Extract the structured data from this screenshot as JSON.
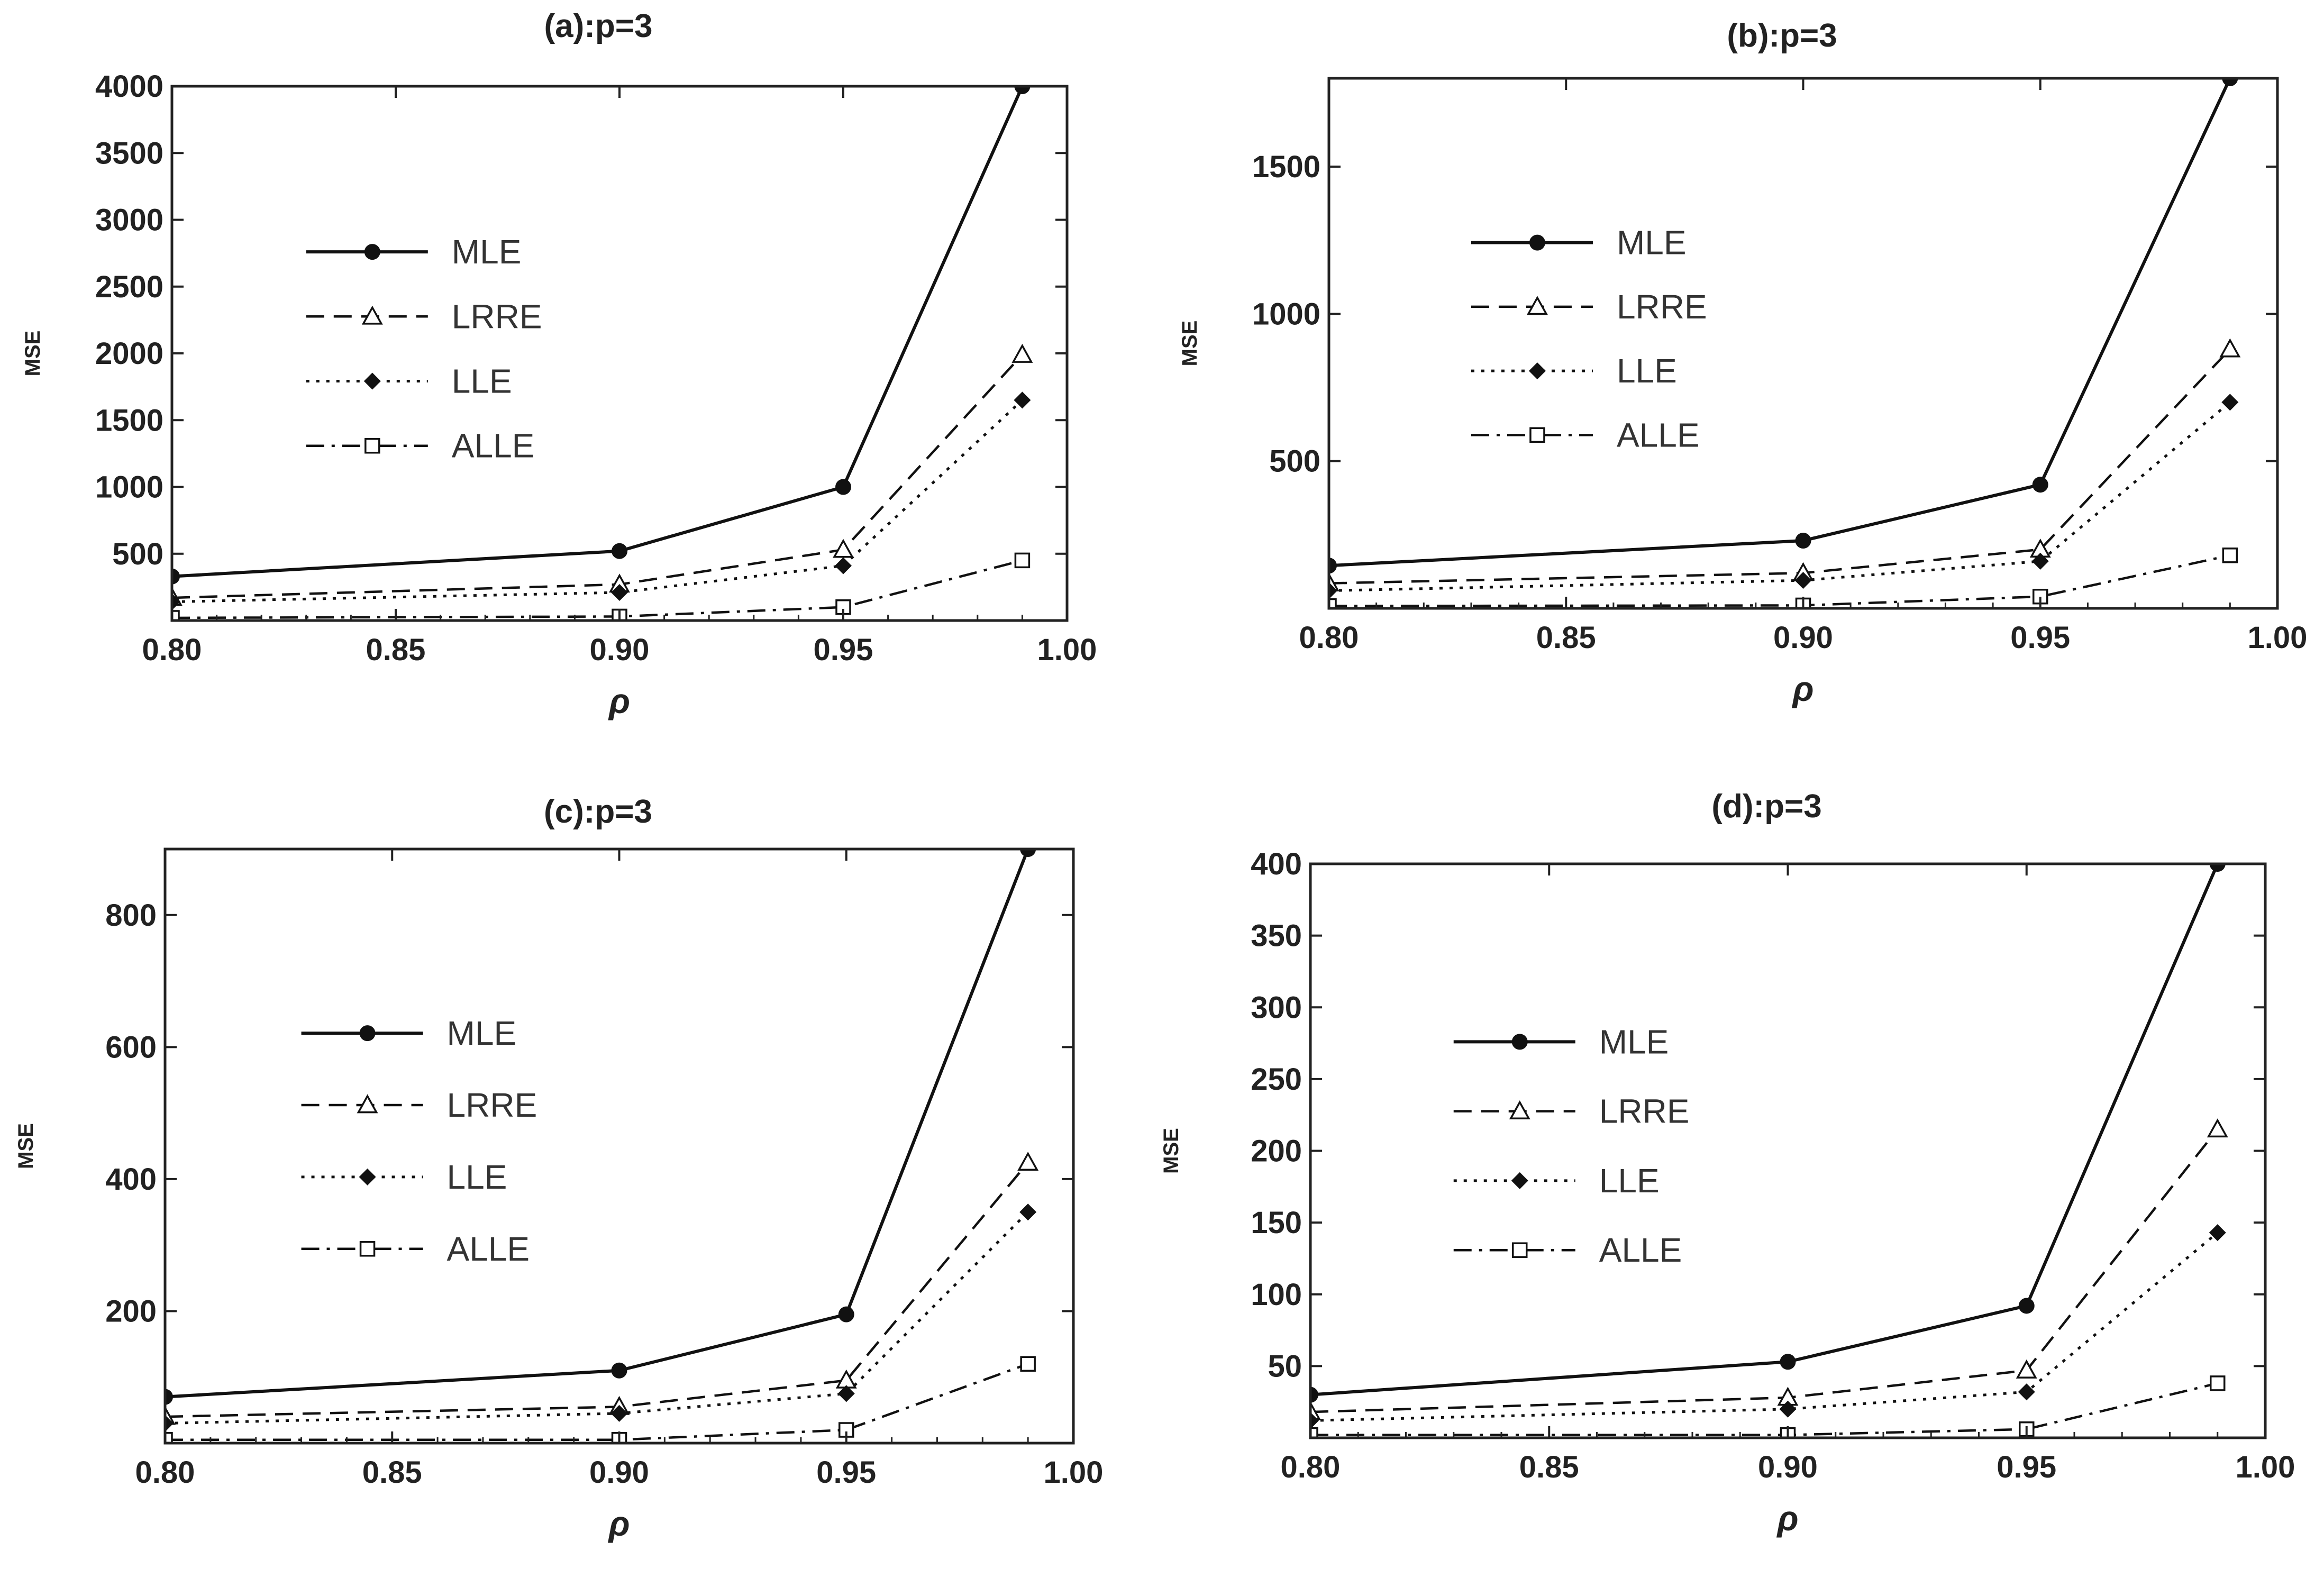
{
  "figure": {
    "panels_title_style": "bold"
  },
  "chart_data": [
    {
      "id": "a",
      "type": "line",
      "title": "(a):p=3",
      "xlabel": "ρ",
      "ylabel": "MSE",
      "x": [
        0.8,
        0.9,
        0.95,
        0.99
      ],
      "xlim": [
        0.8,
        1.0
      ],
      "ylim": [
        0,
        4000
      ],
      "xticks": [
        "0.80",
        "0.85",
        "0.90",
        "0.95",
        "1.00"
      ],
      "xtick_values": [
        0.8,
        0.85,
        0.9,
        0.95,
        1.0
      ],
      "yticks": [
        "500",
        "1000",
        "1500",
        "2000",
        "2500",
        "3000",
        "3500",
        "4000"
      ],
      "ytick_values": [
        500,
        1000,
        1500,
        2000,
        2500,
        3000,
        3500,
        4000
      ],
      "legend_position": "center-left",
      "series": [
        {
          "name": "MLE",
          "values": [
            330,
            520,
            1000,
            4000
          ]
        },
        {
          "name": "LRRE",
          "values": [
            170,
            270,
            530,
            1990
          ]
        },
        {
          "name": "LLE",
          "values": [
            140,
            210,
            410,
            1650
          ]
        },
        {
          "name": "ALLE",
          "values": [
            20,
            30,
            100,
            450
          ]
        }
      ]
    },
    {
      "id": "b",
      "type": "line",
      "title": "(b):p=3",
      "xlabel": "ρ",
      "ylabel": "MSE",
      "x": [
        0.8,
        0.9,
        0.95,
        0.99
      ],
      "xlim": [
        0.8,
        1.0
      ],
      "ylim": [
        0,
        1800
      ],
      "xticks": [
        "0.80",
        "0.85",
        "0.90",
        "0.95",
        "1.00"
      ],
      "xtick_values": [
        0.8,
        0.85,
        0.9,
        0.95,
        1.0
      ],
      "yticks": [
        "500",
        "1000",
        "1500"
      ],
      "ytick_values": [
        500,
        1000,
        1500
      ],
      "legend_position": "center-left",
      "series": [
        {
          "name": "MLE",
          "values": [
            145,
            230,
            420,
            1800
          ]
        },
        {
          "name": "LRRE",
          "values": [
            85,
            120,
            200,
            880
          ]
        },
        {
          "name": "LLE",
          "values": [
            60,
            95,
            160,
            700
          ]
        },
        {
          "name": "ALLE",
          "values": [
            8,
            10,
            40,
            180
          ]
        }
      ]
    },
    {
      "id": "c",
      "type": "line",
      "title": "(c):p=3",
      "xlabel": "ρ",
      "ylabel": "MSE",
      "x": [
        0.8,
        0.9,
        0.95,
        0.99
      ],
      "xlim": [
        0.8,
        1.0
      ],
      "ylim": [
        0,
        900
      ],
      "xticks": [
        "0.80",
        "0.85",
        "0.90",
        "0.95",
        "1.00"
      ],
      "xtick_values": [
        0.8,
        0.85,
        0.9,
        0.95,
        1.0
      ],
      "yticks": [
        "200",
        "400",
        "600",
        "800"
      ],
      "ytick_values": [
        200,
        400,
        600,
        800
      ],
      "legend_position": "center-left",
      "series": [
        {
          "name": "MLE",
          "values": [
            70,
            110,
            195,
            900
          ]
        },
        {
          "name": "LRRE",
          "values": [
            40,
            55,
            95,
            425
          ]
        },
        {
          "name": "LLE",
          "values": [
            30,
            45,
            75,
            350
          ]
        },
        {
          "name": "ALLE",
          "values": [
            5,
            5,
            20,
            120
          ]
        }
      ]
    },
    {
      "id": "d",
      "type": "line",
      "title": "(d):p=3",
      "xlabel": "ρ",
      "ylabel": "MSE",
      "x": [
        0.8,
        0.9,
        0.95,
        0.99
      ],
      "xlim": [
        0.8,
        1.0
      ],
      "ylim": [
        0,
        400
      ],
      "xticks": [
        "0.80",
        "0.85",
        "0.90",
        "0.95",
        "1.00"
      ],
      "xtick_values": [
        0.8,
        0.85,
        0.9,
        0.95,
        1.0
      ],
      "yticks": [
        "50",
        "100",
        "150",
        "200",
        "250",
        "300",
        "350",
        "400"
      ],
      "ytick_values": [
        50,
        100,
        150,
        200,
        250,
        300,
        350,
        400
      ],
      "legend_position": "center-left",
      "series": [
        {
          "name": "MLE",
          "values": [
            30,
            53,
            92,
            400
          ]
        },
        {
          "name": "LRRE",
          "values": [
            18,
            28,
            47,
            215
          ]
        },
        {
          "name": "LLE",
          "values": [
            12,
            20,
            32,
            143
          ]
        },
        {
          "name": "ALLE",
          "values": [
            2,
            2,
            6,
            38
          ]
        }
      ]
    }
  ]
}
